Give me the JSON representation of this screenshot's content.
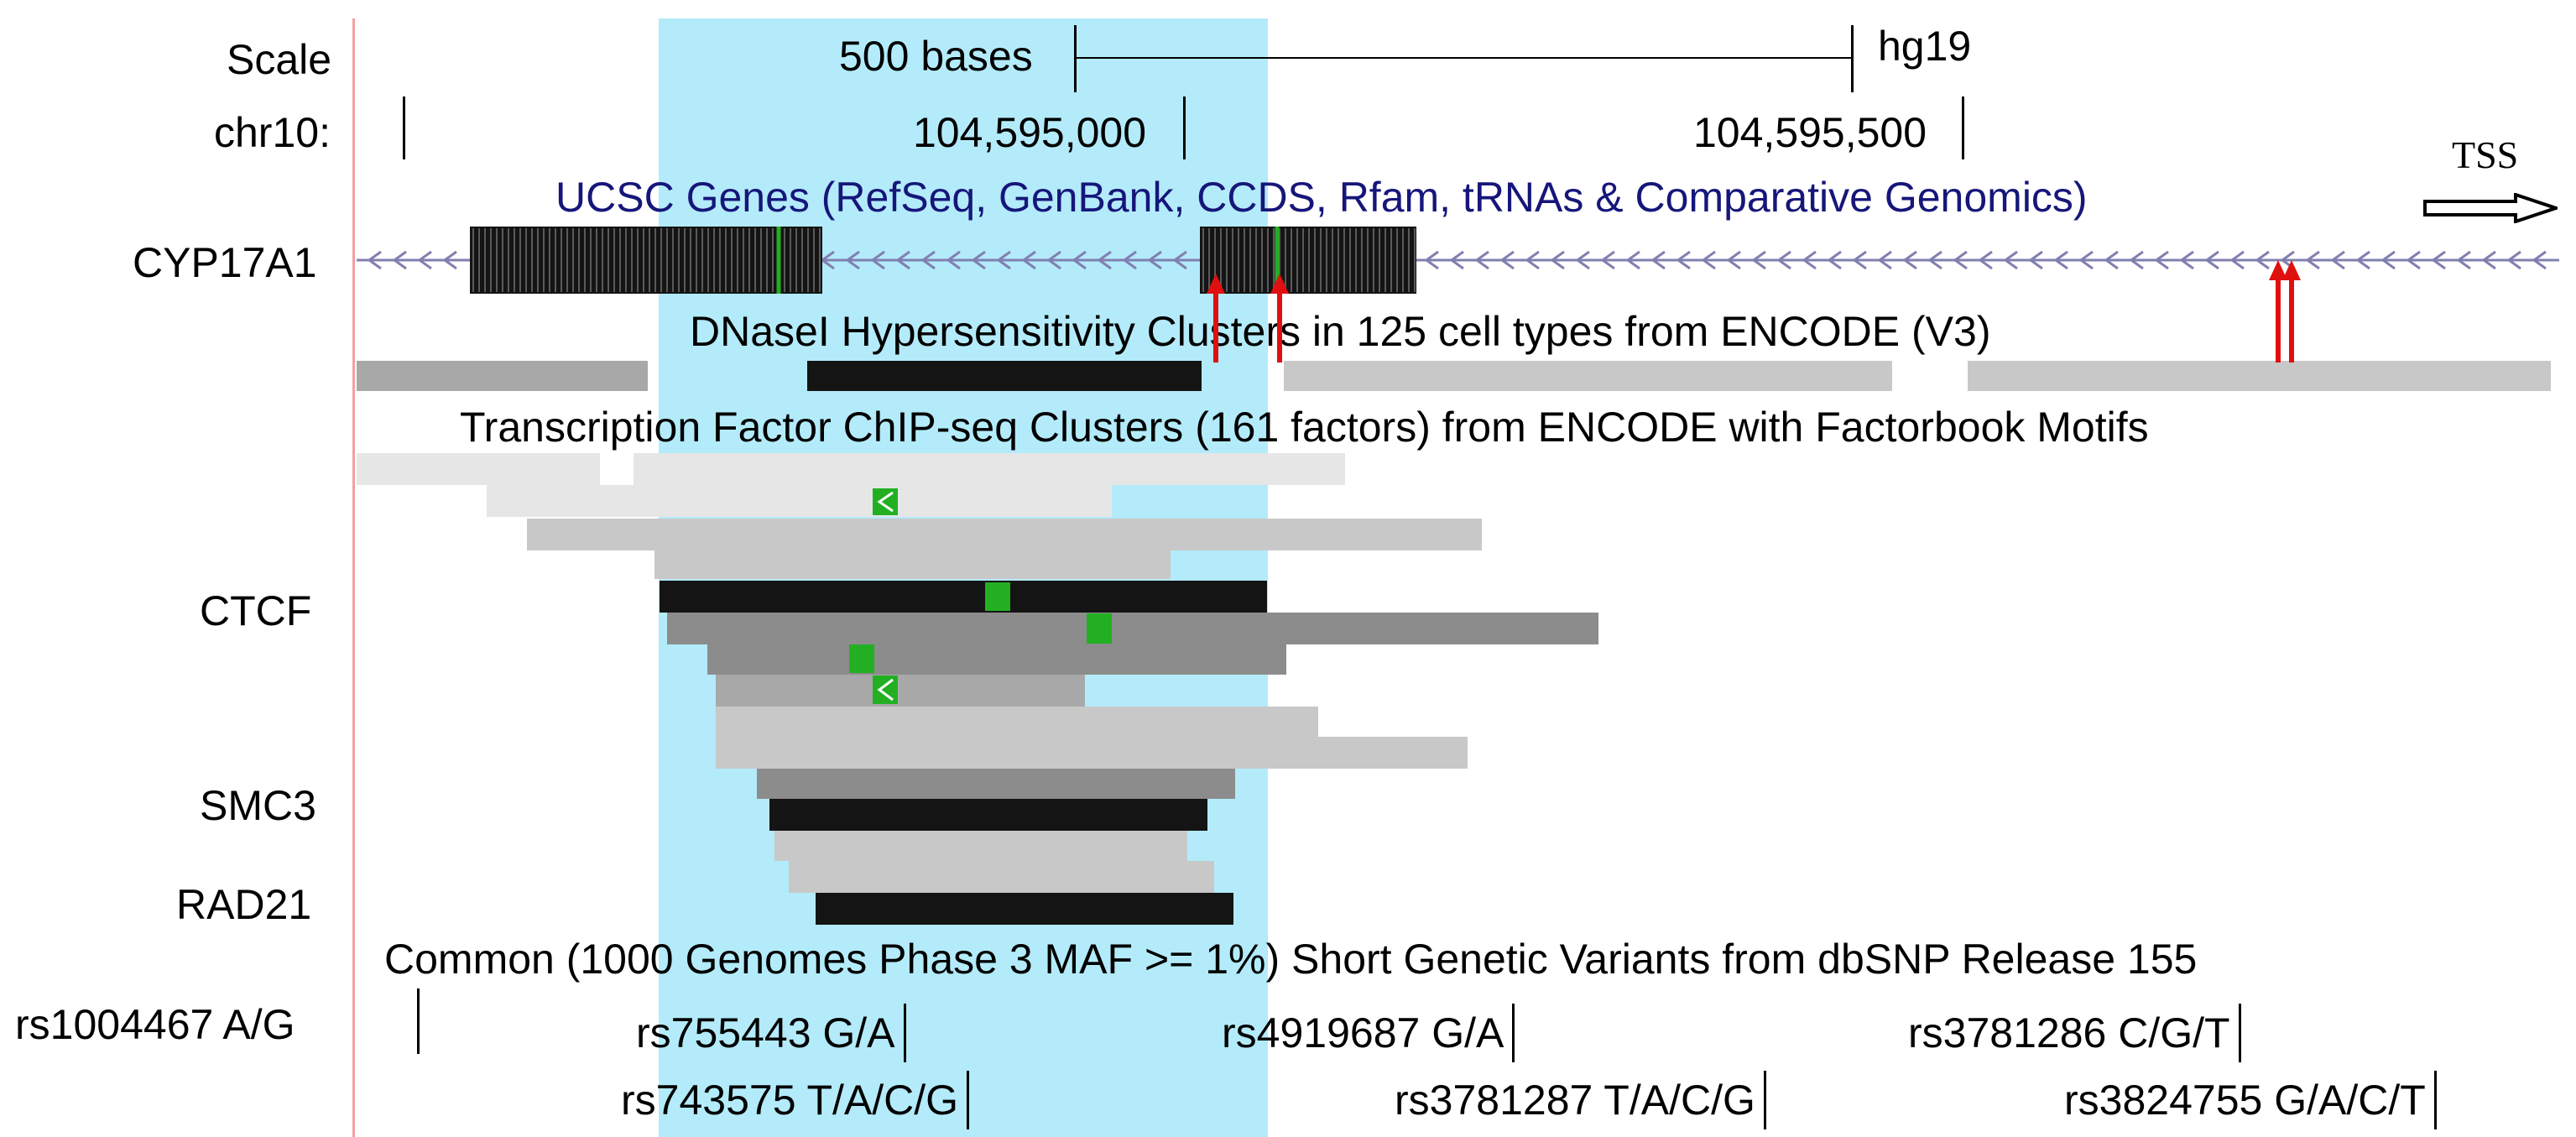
{
  "assembly": "hg19",
  "scale": {
    "label": "Scale",
    "size_label": "500 bases"
  },
  "position": {
    "chrom_label": "chr10:",
    "ticks": [
      "104,595,000",
      "104,595,500"
    ]
  },
  "tracks": {
    "genes": {
      "title": "UCSC Genes (RefSeq, GenBank, CCDS, Rfam, tRNAs & Comparative Genomics)",
      "gene_name": "CYP17A1",
      "tss_label": "TSS"
    },
    "dnase": {
      "title": "DNaseI Hypersensitivity Clusters in 125 cell types from ENCODE (V3)"
    },
    "tfbs": {
      "title": "Transcription Factor ChIP-seq Clusters (161 factors) from ENCODE with Factorbook Motifs",
      "factor_labels": [
        "CTCF",
        "SMC3",
        "RAD21"
      ]
    },
    "snps": {
      "title": "Common (1000 Genomes Phase 3 MAF >= 1%) Short Genetic Variants from dbSNP Release 155",
      "items": [
        "rs1004467 A/G",
        "rs755443 G/A",
        "rs4919687 G/A",
        "rs3781286 C/G/T",
        "rs743575 T/A/C/G",
        "rs3781287 T/A/C/G",
        "rs3824755 G/A/C/T"
      ]
    }
  },
  "colors": {
    "highlight": "#b3ebfa",
    "strand_arrows": "#8080b0",
    "motif": "#22b022",
    "marker_arrows": "#e01010",
    "track_title_blue": "#16167a"
  }
}
